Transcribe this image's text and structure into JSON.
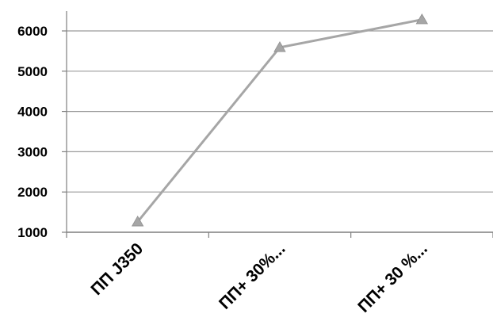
{
  "chart_data": {
    "type": "line",
    "title": "",
    "xlabel": "",
    "ylabel": "",
    "categories": [
      "ПП J350",
      "ПП+   30%...",
      "ПП+ 30 %..."
    ],
    "series": [
      {
        "values": [
          1260,
          5590,
          6280
        ],
        "color": "#a6a6a6",
        "marker": "triangle"
      }
    ],
    "ylim": [
      1000,
      6000
    ],
    "yticks": [
      1000,
      2000,
      3000,
      4000,
      5000,
      6000
    ],
    "grid": "horizontal",
    "legend": "none",
    "colors": {
      "line": "#a6a6a6",
      "grid": "#9a9a9a",
      "axis": "#7f7f7f",
      "text": "#000000"
    }
  }
}
